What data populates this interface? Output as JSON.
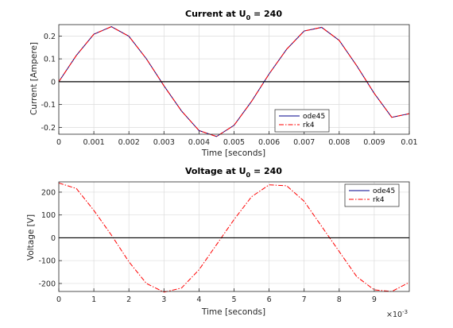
{
  "chart_data": [
    {
      "type": "line",
      "title_main": "Current at U",
      "title_sub": "0",
      "title_rest": " = 240",
      "xlabel": "Time [seconds]",
      "ylabel": "Current [Ampere]",
      "xlim": [
        0,
        0.01
      ],
      "ylim": [
        -0.23,
        0.25
      ],
      "xticks": [
        0,
        0.001,
        0.002,
        0.003,
        0.004,
        0.005,
        0.006,
        0.007,
        0.008,
        0.009,
        0.01
      ],
      "xticklabels": [
        "0",
        "0.001",
        "0.002",
        "0.003",
        "0.004",
        "0.005",
        "0.006",
        "0.007",
        "0.008",
        "0.009",
        "0.01"
      ],
      "yticks": [
        -0.2,
        -0.1,
        0,
        0.1,
        0.2
      ],
      "yticklabels": [
        "-0.2",
        "-0.1",
        "0",
        "0.1",
        "0.2"
      ],
      "grid": true,
      "legend_position": "bottom-right",
      "series": [
        {
          "name": "ode45",
          "color": "#00008b",
          "style": "solid",
          "x": [
            0,
            0.0005,
            0.001,
            0.0015,
            0.002,
            0.0025,
            0.003,
            0.0035,
            0.004,
            0.0045,
            0.005,
            0.0055,
            0.006,
            0.0065,
            0.007,
            0.0075,
            0.008,
            0.0085,
            0.009,
            0.0095,
            0.01
          ],
          "y": [
            0,
            0.115,
            0.208,
            0.241,
            0.199,
            0.1,
            -0.018,
            -0.128,
            -0.214,
            -0.24,
            -0.191,
            -0.086,
            0.034,
            0.142,
            0.222,
            0.238,
            0.181,
            0.07,
            -0.051,
            -0.156,
            -0.14
          ]
        },
        {
          "name": "rk4",
          "color": "#ff0000",
          "style": "dashdot",
          "x": [
            0,
            0.0005,
            0.001,
            0.0015,
            0.002,
            0.0025,
            0.003,
            0.0035,
            0.004,
            0.0045,
            0.005,
            0.0055,
            0.006,
            0.0065,
            0.007,
            0.0075,
            0.008,
            0.0085,
            0.009,
            0.0095,
            0.01
          ],
          "y": [
            0,
            0.115,
            0.208,
            0.241,
            0.199,
            0.1,
            -0.018,
            -0.128,
            -0.214,
            -0.24,
            -0.191,
            -0.086,
            0.034,
            0.142,
            0.222,
            0.238,
            0.181,
            0.07,
            -0.051,
            -0.156,
            -0.14
          ]
        },
        {
          "name": "",
          "color": "#000000",
          "style": "solid",
          "x": [
            0,
            0.01
          ],
          "y": [
            0,
            0
          ]
        }
      ]
    },
    {
      "type": "line",
      "title_main": "Voltage at U",
      "title_sub": "0",
      "title_rest": " = 240",
      "xlabel": "Time [seconds]",
      "ylabel": "Voltage [V]",
      "xlim": [
        0,
        10
      ],
      "ylim": [
        -235,
        245
      ],
      "x_multiplier": "×10",
      "x_multiplier_exp": "-3",
      "xticks": [
        0,
        1,
        2,
        3,
        4,
        5,
        6,
        7,
        8,
        9
      ],
      "xticklabels": [
        "0",
        "1",
        "2",
        "3",
        "4",
        "5",
        "6",
        "7",
        "8",
        "9"
      ],
      "yticks": [
        -200,
        -100,
        0,
        100,
        200
      ],
      "yticklabels": [
        "-200",
        "-100",
        "0",
        "100",
        "200"
      ],
      "grid": true,
      "legend_position": "top-right",
      "series": [
        {
          "name": "ode45",
          "color": "#00008b",
          "style": "solid",
          "x": [
            0,
            10
          ],
          "y": [
            0,
            0
          ]
        },
        {
          "name": "rk4",
          "color": "#ff0000",
          "style": "dashdot",
          "x": [
            0,
            0.5,
            1,
            1.5,
            2,
            2.5,
            3,
            3.5,
            4,
            4.5,
            5,
            5.5,
            6,
            6.5,
            7,
            7.5,
            8,
            8.5,
            9,
            9.5,
            10
          ],
          "y": [
            240,
            216,
            120,
            12,
            -105,
            -200,
            -238,
            -220,
            -140,
            -30,
            80,
            180,
            232,
            228,
            160,
            50,
            -60,
            -170,
            -228,
            -235,
            -195
          ]
        },
        {
          "name": "",
          "color": "#000000",
          "style": "solid",
          "x": [
            0,
            10
          ],
          "y": [
            0,
            0
          ]
        }
      ]
    }
  ]
}
